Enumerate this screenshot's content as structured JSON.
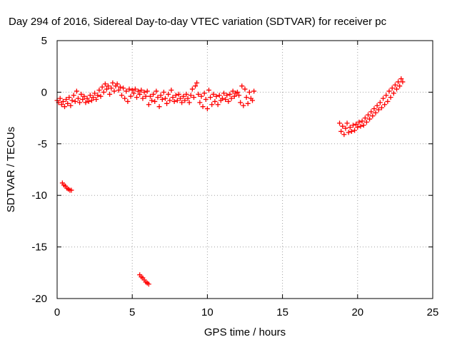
{
  "chart_data": {
    "type": "scatter",
    "title": "Day 294 of 2016, Sidereal Day-to-day VTEC variation (SDTVAR) for receiver pc",
    "xlabel": "GPS time / hours",
    "ylabel": "SDTVAR / TECUs",
    "xlim": [
      0,
      25
    ],
    "ylim": [
      -20,
      5
    ],
    "xticks": [
      0,
      5,
      10,
      15,
      20,
      25
    ],
    "yticks": [
      -20,
      -15,
      -10,
      -5,
      0,
      5
    ],
    "xtick_labels": [
      "0",
      "5",
      "10",
      "15",
      "20",
      "25"
    ],
    "ytick_labels": [
      "-20",
      "-15",
      "-10",
      "-5",
      "0",
      "5"
    ],
    "grid": true,
    "marker": "+",
    "color": "#ff0000",
    "series": [
      {
        "values": [
          [
            0.0,
            -0.8
          ],
          [
            0.1,
            -1.0
          ],
          [
            0.2,
            -0.6
          ],
          [
            0.3,
            -1.2
          ],
          [
            0.4,
            -0.9
          ],
          [
            0.5,
            -1.4
          ],
          [
            0.6,
            -0.7
          ],
          [
            0.7,
            -1.1
          ],
          [
            0.8,
            -0.5
          ],
          [
            0.9,
            -1.3
          ],
          [
            1.0,
            -0.8
          ],
          [
            1.1,
            -0.3
          ],
          [
            1.2,
            -0.9
          ],
          [
            1.3,
            0.1
          ],
          [
            1.4,
            -0.6
          ],
          [
            1.5,
            -1.0
          ],
          [
            1.6,
            -0.2
          ],
          [
            1.7,
            -0.7
          ],
          [
            1.8,
            -0.4
          ],
          [
            1.9,
            -1.0
          ],
          [
            2.0,
            -0.6
          ],
          [
            2.1,
            -0.9
          ],
          [
            2.2,
            -0.3
          ],
          [
            2.3,
            -0.8
          ],
          [
            2.4,
            -0.5
          ],
          [
            2.5,
            -0.1
          ],
          [
            2.6,
            -0.7
          ],
          [
            2.7,
            -0.3
          ],
          [
            2.8,
            0.2
          ],
          [
            2.9,
            -0.4
          ],
          [
            3.0,
            0.5
          ],
          [
            3.1,
            0.0
          ],
          [
            3.2,
            0.8
          ],
          [
            3.3,
            0.3
          ],
          [
            3.4,
            0.6
          ],
          [
            3.5,
            -0.2
          ],
          [
            3.6,
            0.4
          ],
          [
            3.7,
            0.9
          ],
          [
            3.8,
            0.1
          ],
          [
            3.9,
            0.6
          ],
          [
            4.0,
            0.8
          ],
          [
            4.1,
            0.2
          ],
          [
            4.2,
            0.5
          ],
          [
            4.3,
            -0.3
          ],
          [
            4.4,
            0.4
          ],
          [
            4.5,
            -0.6
          ],
          [
            4.6,
            0.1
          ],
          [
            4.7,
            -0.9
          ],
          [
            4.8,
            0.3
          ],
          [
            4.9,
            -0.4
          ],
          [
            5.0,
            0.2
          ],
          [
            5.1,
            -0.1
          ],
          [
            5.2,
            0.3
          ],
          [
            5.3,
            -0.5
          ],
          [
            5.4,
            0.1
          ],
          [
            5.5,
            -0.2
          ],
          [
            5.6,
            0.2
          ],
          [
            5.7,
            -0.6
          ],
          [
            5.8,
            0.0
          ],
          [
            5.9,
            -0.4
          ],
          [
            6.0,
            0.1
          ],
          [
            6.1,
            -1.2
          ],
          [
            6.2,
            -0.4
          ],
          [
            6.3,
            -0.8
          ],
          [
            6.4,
            -0.2
          ],
          [
            6.5,
            -0.9
          ],
          [
            6.6,
            0.1
          ],
          [
            6.7,
            -0.5
          ],
          [
            6.8,
            -1.4
          ],
          [
            6.9,
            -0.3
          ],
          [
            7.0,
            -0.7
          ],
          [
            7.1,
            0.0
          ],
          [
            7.2,
            -0.6
          ],
          [
            7.3,
            -1.1
          ],
          [
            7.4,
            -0.2
          ],
          [
            7.5,
            -0.8
          ],
          [
            7.6,
            0.2
          ],
          [
            7.7,
            -0.5
          ],
          [
            7.8,
            -0.9
          ],
          [
            7.9,
            -0.3
          ],
          [
            8.0,
            -0.8
          ],
          [
            8.1,
            -0.2
          ],
          [
            8.2,
            -0.6
          ],
          [
            8.3,
            -1.0
          ],
          [
            8.4,
            -0.4
          ],
          [
            8.5,
            -0.8
          ],
          [
            8.6,
            -0.2
          ],
          [
            8.7,
            -0.6
          ],
          [
            8.8,
            -1.0
          ],
          [
            8.9,
            -0.3
          ],
          [
            9.0,
            0.3
          ],
          [
            9.1,
            -0.5
          ],
          [
            9.2,
            0.6
          ],
          [
            9.3,
            0.9
          ],
          [
            9.4,
            -0.2
          ],
          [
            9.5,
            -1.0
          ],
          [
            9.6,
            -0.4
          ],
          [
            9.7,
            -1.4
          ],
          [
            9.8,
            -0.1
          ],
          [
            9.9,
            -0.7
          ],
          [
            10.0,
            -1.6
          ],
          [
            10.1,
            0.2
          ],
          [
            10.2,
            -0.5
          ],
          [
            10.3,
            -1.2
          ],
          [
            10.4,
            -0.2
          ],
          [
            10.5,
            -0.9
          ],
          [
            10.6,
            -0.4
          ],
          [
            10.7,
            -1.2
          ],
          [
            10.8,
            -0.3
          ],
          [
            10.9,
            -0.8
          ],
          [
            11.0,
            -0.6
          ],
          [
            11.1,
            -0.1
          ],
          [
            11.2,
            -0.7
          ],
          [
            11.3,
            -0.3
          ],
          [
            11.4,
            -0.9
          ],
          [
            11.5,
            -0.2
          ],
          [
            11.6,
            -0.6
          ],
          [
            11.7,
            0.1
          ],
          [
            11.8,
            -0.4
          ],
          [
            11.9,
            -0.1
          ],
          [
            12.0,
            0.0
          ],
          [
            12.1,
            -0.3
          ],
          [
            12.2,
            -1.0
          ],
          [
            12.3,
            0.6
          ],
          [
            12.4,
            -1.3
          ],
          [
            12.5,
            0.3
          ],
          [
            12.6,
            -0.5
          ],
          [
            12.7,
            -1.1
          ],
          [
            12.8,
            0.0
          ],
          [
            12.9,
            -0.6
          ],
          [
            13.0,
            -0.8
          ],
          [
            13.1,
            0.1
          ],
          [
            18.8,
            -3.0
          ],
          [
            18.9,
            -3.8
          ],
          [
            19.0,
            -3.3
          ],
          [
            19.1,
            -4.1
          ],
          [
            19.2,
            -3.5
          ],
          [
            19.3,
            -3.0
          ],
          [
            19.4,
            -3.9
          ],
          [
            19.5,
            -3.4
          ],
          [
            19.6,
            -3.8
          ],
          [
            19.7,
            -3.2
          ],
          [
            19.8,
            -3.7
          ],
          [
            19.9,
            -3.1
          ],
          [
            20.0,
            -3.4
          ],
          [
            20.1,
            -2.9
          ],
          [
            20.2,
            -3.3
          ],
          [
            20.3,
            -2.8
          ],
          [
            20.4,
            -3.2
          ],
          [
            20.5,
            -2.5
          ],
          [
            20.6,
            -2.9
          ],
          [
            20.7,
            -2.2
          ],
          [
            20.8,
            -2.6
          ],
          [
            20.9,
            -1.9
          ],
          [
            21.0,
            -2.3
          ],
          [
            21.1,
            -1.6
          ],
          [
            21.2,
            -2.0
          ],
          [
            21.3,
            -1.3
          ],
          [
            21.4,
            -1.7
          ],
          [
            21.5,
            -1.0
          ],
          [
            21.6,
            -1.5
          ],
          [
            21.7,
            -0.6
          ],
          [
            21.8,
            -1.2
          ],
          [
            21.9,
            -0.3
          ],
          [
            22.0,
            -0.9
          ],
          [
            22.1,
            0.1
          ],
          [
            22.2,
            -0.5
          ],
          [
            22.3,
            0.4
          ],
          [
            22.4,
            -0.1
          ],
          [
            22.5,
            0.7
          ],
          [
            22.6,
            0.3
          ],
          [
            22.7,
            1.0
          ],
          [
            22.8,
            0.6
          ],
          [
            22.9,
            1.3
          ],
          [
            23.0,
            1.0
          ],
          [
            0.35,
            -8.8
          ],
          [
            0.45,
            -9.0
          ],
          [
            0.55,
            -9.1
          ],
          [
            0.65,
            -9.3
          ],
          [
            0.75,
            -9.4
          ],
          [
            0.85,
            -9.5
          ],
          [
            0.95,
            -9.5
          ],
          [
            5.5,
            -17.7
          ],
          [
            5.6,
            -17.9
          ],
          [
            5.7,
            -18.0
          ],
          [
            5.8,
            -18.2
          ],
          [
            5.9,
            -18.4
          ],
          [
            6.0,
            -18.5
          ],
          [
            6.1,
            -18.6
          ]
        ]
      }
    ]
  }
}
